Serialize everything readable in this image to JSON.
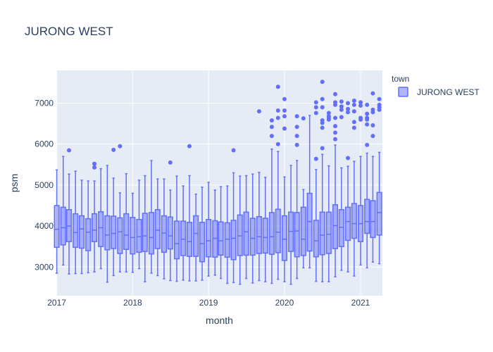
{
  "chart_data": {
    "type": "box",
    "title": "JURONG WEST",
    "xlabel": "month",
    "ylabel": "psm",
    "x_ticks": [
      "2017",
      "2018",
      "2019",
      "2020",
      "2021"
    ],
    "y_ticks": [
      3000,
      4000,
      5000,
      6000,
      7000
    ],
    "ylim": [
      2300,
      7800
    ],
    "xlim": [
      "2016-12-30",
      "2021-04-16"
    ],
    "grid": true,
    "legend": {
      "title": "town",
      "position": "top-right"
    },
    "colors": {
      "series": "#636efa",
      "fill": "rgba(99,110,250,0.5)",
      "plot_bg": "#e5ecf6",
      "grid": "#ffffff"
    },
    "series": [
      {
        "name": "JURONG WEST",
        "boxes": [
          {
            "x": "2017-01-01",
            "min": 2850,
            "q1": 3480,
            "median": 3920,
            "q3": 4500,
            "max": 5370,
            "outliers": []
          },
          {
            "x": "2017-02-01",
            "min": 3050,
            "q1": 3540,
            "median": 3960,
            "q3": 4460,
            "max": 5700,
            "outliers": []
          },
          {
            "x": "2017-03-01",
            "min": 2830,
            "q1": 3620,
            "median": 4000,
            "q3": 4400,
            "max": 5270,
            "outliers": [
              5850
            ]
          },
          {
            "x": "2017-04-01",
            "min": 2840,
            "q1": 3480,
            "median": 3840,
            "q3": 4300,
            "max": 5340,
            "outliers": []
          },
          {
            "x": "2017-05-01",
            "min": 2840,
            "q1": 3460,
            "median": 3930,
            "q3": 4250,
            "max": 5120,
            "outliers": []
          },
          {
            "x": "2017-06-01",
            "min": 2860,
            "q1": 3400,
            "median": 3850,
            "q3": 4180,
            "max": 5100,
            "outliers": []
          },
          {
            "x": "2017-07-01",
            "min": 2880,
            "q1": 3620,
            "median": 3900,
            "q3": 4300,
            "max": 5100,
            "outliers": [
              5430,
              5520
            ]
          },
          {
            "x": "2017-08-01",
            "min": 2960,
            "q1": 3500,
            "median": 3960,
            "q3": 4350,
            "max": 5400,
            "outliers": []
          },
          {
            "x": "2017-09-01",
            "min": 2630,
            "q1": 3420,
            "median": 3780,
            "q3": 4250,
            "max": 5480,
            "outliers": []
          },
          {
            "x": "2017-10-01",
            "min": 2790,
            "q1": 3450,
            "median": 3820,
            "q3": 4240,
            "max": 5170,
            "outliers": [
              5860
            ]
          },
          {
            "x": "2017-11-01",
            "min": 2880,
            "q1": 3330,
            "median": 3860,
            "q3": 4200,
            "max": 4810,
            "outliers": [
              5950
            ]
          },
          {
            "x": "2017-12-01",
            "min": 2880,
            "q1": 3430,
            "median": 3780,
            "q3": 4300,
            "max": 5280,
            "outliers": []
          },
          {
            "x": "2018-01-01",
            "min": 2870,
            "q1": 3320,
            "median": 3720,
            "q3": 4210,
            "max": 4800,
            "outliers": []
          },
          {
            "x": "2018-02-01",
            "min": 2960,
            "q1": 3360,
            "median": 3740,
            "q3": 4160,
            "max": 5120,
            "outliers": []
          },
          {
            "x": "2018-03-01",
            "min": 2640,
            "q1": 3380,
            "median": 3760,
            "q3": 4310,
            "max": 5230,
            "outliers": []
          },
          {
            "x": "2018-04-01",
            "min": 2850,
            "q1": 3320,
            "median": 3720,
            "q3": 4330,
            "max": 5600,
            "outliers": []
          },
          {
            "x": "2018-05-01",
            "min": 2790,
            "q1": 3450,
            "median": 3900,
            "q3": 4400,
            "max": 5150,
            "outliers": []
          },
          {
            "x": "2018-06-01",
            "min": 2710,
            "q1": 3360,
            "median": 3830,
            "q3": 4250,
            "max": 5150,
            "outliers": []
          },
          {
            "x": "2018-07-01",
            "min": 2670,
            "q1": 3440,
            "median": 3760,
            "q3": 4220,
            "max": 4880,
            "outliers": [
              5550
            ]
          },
          {
            "x": "2018-08-01",
            "min": 2650,
            "q1": 3200,
            "median": 3570,
            "q3": 4120,
            "max": 5220,
            "outliers": []
          },
          {
            "x": "2018-09-01",
            "min": 2680,
            "q1": 3280,
            "median": 3680,
            "q3": 4120,
            "max": 4980,
            "outliers": []
          },
          {
            "x": "2018-10-01",
            "min": 2660,
            "q1": 3260,
            "median": 3620,
            "q3": 4090,
            "max": 5230,
            "outliers": [
              5950
            ]
          },
          {
            "x": "2018-11-01",
            "min": 2660,
            "q1": 3260,
            "median": 3820,
            "q3": 4250,
            "max": 4780,
            "outliers": []
          },
          {
            "x": "2018-12-01",
            "min": 2680,
            "q1": 3130,
            "median": 3570,
            "q3": 4090,
            "max": 4950,
            "outliers": []
          },
          {
            "x": "2019-01-01",
            "min": 2780,
            "q1": 3250,
            "median": 3640,
            "q3": 4160,
            "max": 5070,
            "outliers": []
          },
          {
            "x": "2019-02-01",
            "min": 2800,
            "q1": 3240,
            "median": 3700,
            "q3": 4130,
            "max": 4880,
            "outliers": []
          },
          {
            "x": "2019-03-01",
            "min": 2720,
            "q1": 3290,
            "median": 3640,
            "q3": 4100,
            "max": 4960,
            "outliers": []
          },
          {
            "x": "2019-04-01",
            "min": 2600,
            "q1": 3240,
            "median": 3680,
            "q3": 4080,
            "max": 4980,
            "outliers": []
          },
          {
            "x": "2019-05-01",
            "min": 2620,
            "q1": 3180,
            "median": 3700,
            "q3": 4140,
            "max": 5300,
            "outliers": [
              5850
            ]
          },
          {
            "x": "2019-06-01",
            "min": 2580,
            "q1": 3280,
            "median": 3760,
            "q3": 4270,
            "max": 5220,
            "outliers": []
          },
          {
            "x": "2019-07-01",
            "min": 2720,
            "q1": 3290,
            "median": 3860,
            "q3": 4340,
            "max": 5230,
            "outliers": []
          },
          {
            "x": "2019-08-01",
            "min": 2610,
            "q1": 3290,
            "median": 3700,
            "q3": 4190,
            "max": 5270,
            "outliers": []
          },
          {
            "x": "2019-09-01",
            "min": 2670,
            "q1": 3330,
            "median": 3740,
            "q3": 4230,
            "max": 5310,
            "outliers": [
              6800
            ]
          },
          {
            "x": "2019-10-01",
            "min": 2640,
            "q1": 3340,
            "median": 3720,
            "q3": 4190,
            "max": 5190,
            "outliers": []
          },
          {
            "x": "2019-11-01",
            "min": 2600,
            "q1": 3310,
            "median": 3740,
            "q3": 4330,
            "max": 5880,
            "outliers": [
              6200,
              6420,
              6580
            ]
          },
          {
            "x": "2019-12-01",
            "min": 2700,
            "q1": 3350,
            "median": 3850,
            "q3": 4410,
            "max": 5820,
            "outliers": [
              6000,
              6640,
              6820,
              7400
            ]
          },
          {
            "x": "2020-01-01",
            "min": 2640,
            "q1": 3160,
            "median": 3680,
            "q3": 4250,
            "max": 5200,
            "outliers": [
              6380,
              6680,
              6820,
              7100
            ]
          },
          {
            "x": "2020-02-01",
            "min": 2580,
            "q1": 3380,
            "median": 3870,
            "q3": 4340,
            "max": 5480,
            "outliers": []
          },
          {
            "x": "2020-03-01",
            "min": 2720,
            "q1": 3250,
            "median": 3880,
            "q3": 4330,
            "max": 5600,
            "outliers": [
              5980,
              6200,
              6420,
              6680
            ]
          },
          {
            "x": "2020-04-01",
            "min": 2980,
            "q1": 3280,
            "median": 3680,
            "q3": 4460,
            "max": 4890,
            "outliers": [
              6630
            ]
          },
          {
            "x": "2020-05-01",
            "min": 2980,
            "q1": 3390,
            "median": 4110,
            "q3": 4800,
            "max": 6700,
            "outliers": []
          },
          {
            "x": "2020-06-01",
            "min": 2650,
            "q1": 3250,
            "median": 3640,
            "q3": 4140,
            "max": 5380,
            "outliers": [
              5640,
              6760,
              6900,
              7020
            ]
          },
          {
            "x": "2020-07-01",
            "min": 2640,
            "q1": 3300,
            "median": 3780,
            "q3": 4340,
            "max": 5750,
            "outliers": [
              5900,
              6400,
              6520,
              6580,
              6900,
              7100,
              7520
            ]
          },
          {
            "x": "2020-08-01",
            "min": 2640,
            "q1": 3330,
            "median": 3800,
            "q3": 4340,
            "max": 5470,
            "outliers": [
              6600,
              6640,
              6680,
              6760
            ]
          },
          {
            "x": "2020-09-01",
            "min": 2760,
            "q1": 3450,
            "median": 4010,
            "q3": 4520,
            "max": 5980,
            "outliers": [
              6120,
              6280,
              6440,
              6640,
              6960,
              7020,
              7220
            ]
          },
          {
            "x": "2020-10-01",
            "min": 2920,
            "q1": 3500,
            "median": 3970,
            "q3": 4400,
            "max": 5420,
            "outliers": [
              6660,
              6840,
              6920,
              7040
            ]
          },
          {
            "x": "2020-11-01",
            "min": 2880,
            "q1": 3650,
            "median": 4110,
            "q3": 4460,
            "max": 5460,
            "outliers": [
              5660,
              6780,
              6860,
              7000
            ]
          },
          {
            "x": "2020-12-01",
            "min": 2780,
            "q1": 3700,
            "median": 4060,
            "q3": 4550,
            "max": 5580,
            "outliers": [
              6400,
              6540,
              6800,
              6960,
              7060
            ]
          },
          {
            "x": "2021-01-01",
            "min": 3050,
            "q1": 3620,
            "median": 4060,
            "q3": 4500,
            "max": 5700,
            "outliers": [
              6600,
              6640,
              6940,
              7020
            ]
          },
          {
            "x": "2021-02-01",
            "min": 2980,
            "q1": 3820,
            "median": 4110,
            "q3": 4650,
            "max": 5780,
            "outliers": [
              5980,
              6480,
              6600,
              6640,
              6740,
              6960
            ]
          },
          {
            "x": "2021-03-01",
            "min": 3120,
            "q1": 3720,
            "median": 4110,
            "q3": 4620,
            "max": 5700,
            "outliers": [
              6200,
              6460,
              6780,
              6840,
              7240
            ]
          },
          {
            "x": "2021-04-01",
            "min": 3080,
            "q1": 3780,
            "median": 4330,
            "q3": 4820,
            "max": 5800,
            "outliers": [
              6840,
              6900,
              6960,
              7100
            ]
          }
        ]
      }
    ]
  }
}
